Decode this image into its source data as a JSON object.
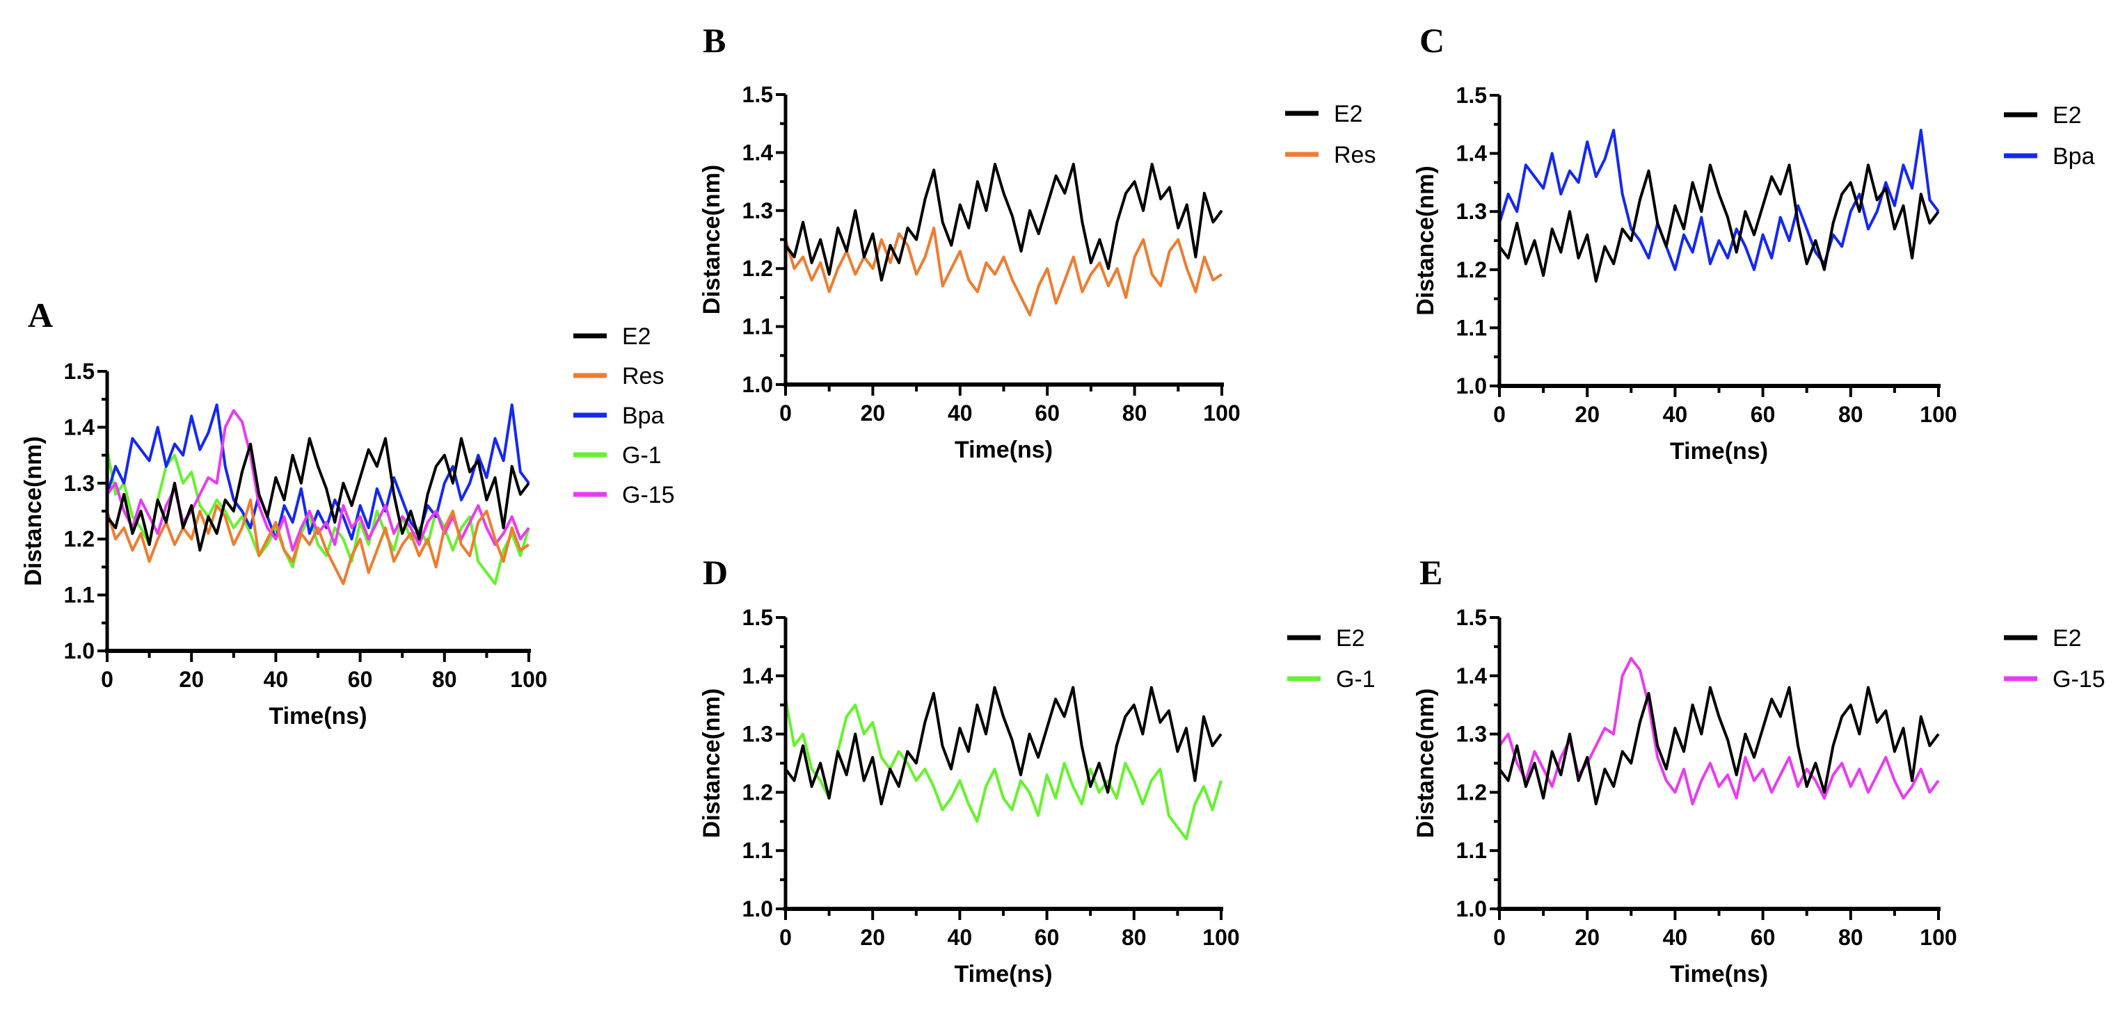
{
  "chart_data": {
    "type": "line",
    "xlabel": "Time(ns)",
    "ylabel": "Distance(nm)",
    "xlim": [
      0,
      100
    ],
    "ylim": [
      1.0,
      1.5
    ],
    "x_ticks": [
      "0",
      "20",
      "40",
      "60",
      "80",
      "100"
    ],
    "y_ticks": [
      "1.0",
      "1.1",
      "1.2",
      "1.3",
      "1.4",
      "1.5"
    ],
    "grid": false,
    "legend_placement": "right",
    "x_start": 0,
    "x_step": 2,
    "colors": {
      "E2": "#000000",
      "Res": "#ED7D31",
      "Bpa": "#1428F2",
      "G-1": "#66F22E",
      "G-15": "#E83CF0"
    },
    "series": {
      "E2": [
        1.24,
        1.22,
        1.28,
        1.21,
        1.25,
        1.19,
        1.27,
        1.23,
        1.3,
        1.22,
        1.26,
        1.18,
        1.24,
        1.21,
        1.27,
        1.25,
        1.32,
        1.37,
        1.28,
        1.24,
        1.31,
        1.27,
        1.35,
        1.3,
        1.38,
        1.33,
        1.29,
        1.23,
        1.3,
        1.26,
        1.31,
        1.36,
        1.33,
        1.38,
        1.28,
        1.21,
        1.25,
        1.2,
        1.28,
        1.33,
        1.35,
        1.3,
        1.38,
        1.32,
        1.34,
        1.27,
        1.31,
        1.22,
        1.33,
        1.28,
        1.3
      ],
      "Res": [
        1.25,
        1.2,
        1.22,
        1.18,
        1.21,
        1.16,
        1.2,
        1.23,
        1.19,
        1.22,
        1.2,
        1.25,
        1.21,
        1.26,
        1.24,
        1.19,
        1.22,
        1.27,
        1.17,
        1.2,
        1.23,
        1.18,
        1.16,
        1.21,
        1.19,
        1.22,
        1.18,
        1.15,
        1.12,
        1.17,
        1.2,
        1.14,
        1.18,
        1.22,
        1.16,
        1.19,
        1.21,
        1.17,
        1.2,
        1.15,
        1.22,
        1.25,
        1.19,
        1.17,
        1.23,
        1.25,
        1.2,
        1.16,
        1.22,
        1.18,
        1.19
      ],
      "Bpa": [
        1.28,
        1.33,
        1.3,
        1.38,
        1.36,
        1.34,
        1.4,
        1.33,
        1.37,
        1.35,
        1.42,
        1.36,
        1.39,
        1.44,
        1.33,
        1.27,
        1.25,
        1.22,
        1.28,
        1.24,
        1.2,
        1.26,
        1.23,
        1.29,
        1.21,
        1.25,
        1.22,
        1.27,
        1.24,
        1.2,
        1.26,
        1.22,
        1.29,
        1.25,
        1.31,
        1.27,
        1.23,
        1.21,
        1.26,
        1.24,
        1.3,
        1.33,
        1.27,
        1.3,
        1.35,
        1.31,
        1.38,
        1.34,
        1.44,
        1.32,
        1.3
      ],
      "G-1": [
        1.36,
        1.28,
        1.3,
        1.24,
        1.22,
        1.19,
        1.27,
        1.33,
        1.35,
        1.3,
        1.32,
        1.26,
        1.24,
        1.27,
        1.25,
        1.22,
        1.24,
        1.21,
        1.17,
        1.19,
        1.22,
        1.18,
        1.15,
        1.21,
        1.24,
        1.19,
        1.17,
        1.22,
        1.2,
        1.16,
        1.23,
        1.19,
        1.25,
        1.21,
        1.18,
        1.24,
        1.2,
        1.22,
        1.19,
        1.25,
        1.22,
        1.18,
        1.22,
        1.24,
        1.16,
        1.14,
        1.12,
        1.18,
        1.21,
        1.17,
        1.22
      ],
      "G-15": [
        1.28,
        1.3,
        1.25,
        1.22,
        1.27,
        1.24,
        1.21,
        1.26,
        1.29,
        1.23,
        1.25,
        1.28,
        1.31,
        1.3,
        1.4,
        1.43,
        1.41,
        1.35,
        1.26,
        1.22,
        1.2,
        1.24,
        1.18,
        1.22,
        1.25,
        1.21,
        1.23,
        1.19,
        1.26,
        1.22,
        1.24,
        1.2,
        1.23,
        1.26,
        1.21,
        1.24,
        1.22,
        1.19,
        1.23,
        1.25,
        1.21,
        1.24,
        1.2,
        1.23,
        1.26,
        1.22,
        1.19,
        1.21,
        1.24,
        1.2,
        1.22
      ]
    },
    "panels": [
      {
        "label": "A",
        "legend": [
          "E2",
          "Res",
          "Bpa",
          "G-1",
          "G-15"
        ],
        "draw_order": [
          "G-1",
          "Bpa",
          "G-15",
          "Res",
          "E2"
        ]
      },
      {
        "label": "B",
        "legend": [
          "E2",
          "Res"
        ],
        "draw_order": [
          "Res",
          "E2"
        ]
      },
      {
        "label": "C",
        "legend": [
          "E2",
          "Bpa"
        ],
        "draw_order": [
          "Bpa",
          "E2"
        ]
      },
      {
        "label": "D",
        "legend": [
          "E2",
          "G-1"
        ],
        "draw_order": [
          "G-1",
          "E2"
        ]
      },
      {
        "label": "E",
        "legend": [
          "E2",
          "G-15"
        ],
        "draw_order": [
          "G-15",
          "E2"
        ]
      }
    ]
  }
}
